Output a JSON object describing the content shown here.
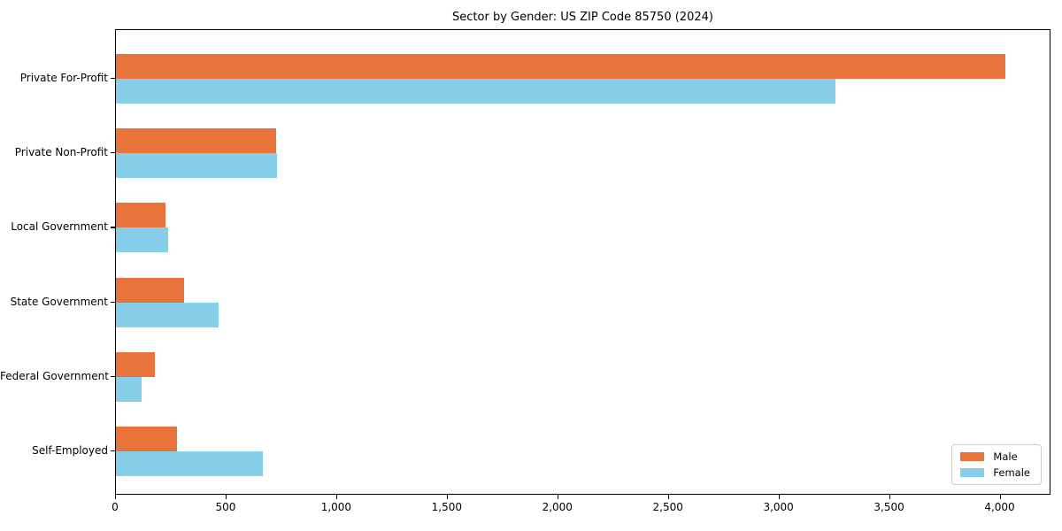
{
  "title": "Sector by Gender: US ZIP Code 85750 (2024)",
  "chart_data": {
    "type": "bar",
    "orientation": "horizontal",
    "title": "Sector by Gender: US ZIP Code 85750 (2024)",
    "categories": [
      "Private For-Profit",
      "Private Non-Profit",
      "Local Government",
      "State Government",
      "Federal Government",
      "Self-Employed"
    ],
    "series": [
      {
        "name": "Male",
        "color": "#e8743b",
        "values": [
          4020,
          725,
          225,
          310,
          175,
          275
        ]
      },
      {
        "name": "Female",
        "color": "#87ceeb",
        "values": [
          3255,
          730,
          235,
          465,
          115,
          665
        ]
      }
    ],
    "xlim": [
      0,
      4230
    ],
    "xticks": [
      0,
      500,
      1000,
      1500,
      2000,
      2500,
      3000,
      3500,
      4000
    ],
    "xtick_labels": [
      "0",
      "500",
      "1,000",
      "1,500",
      "2,000",
      "2,500",
      "3,000",
      "3,500",
      "4,000"
    ],
    "xlabel": "",
    "ylabel": "",
    "legend_position": "lower right",
    "grid": false,
    "background": "#ffffff",
    "axis_color": "#000000"
  }
}
